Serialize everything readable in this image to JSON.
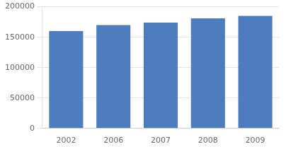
{
  "chart_data": {
    "type": "bar",
    "categories": [
      "2002",
      "2006",
      "2007",
      "2008",
      "2009"
    ],
    "values": [
      160000,
      170000,
      174000,
      181000,
      185000
    ],
    "color": "#4E7DBF",
    "ylim": [
      0,
      200000
    ],
    "yticks": [
      0,
      50000,
      100000,
      150000,
      200000
    ],
    "grid": true
  }
}
